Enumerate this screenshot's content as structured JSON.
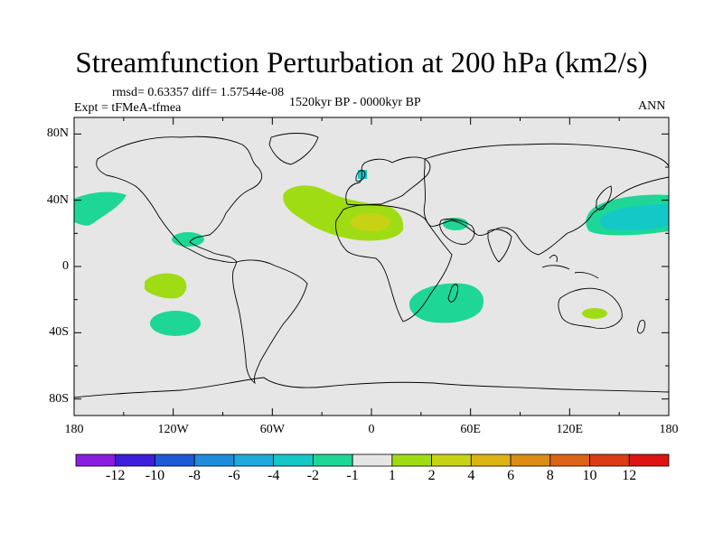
{
  "chart_data": {
    "type": "heatmap",
    "title": "Streamfunction Perturbation at 200 hPa (km2/s)",
    "stats_text": "rmsd= 0.63357 diff= 1.57544e-08",
    "experiment_label": "Expt = tFMeA-tfmea",
    "period_label": "1520kyr BP - 0000kyr BP",
    "season_label": "ANN",
    "x_axis": {
      "range": [
        -180,
        180
      ],
      "ticks": [
        "180",
        "120W",
        "60W",
        "0",
        "60E",
        "120E",
        "180"
      ]
    },
    "y_axis": {
      "range": [
        -90,
        90
      ],
      "ticks": [
        "80N",
        "40N",
        "0",
        "40S",
        "80S"
      ]
    },
    "colorbar": {
      "labels": [
        "-12",
        "-10",
        "-8",
        "-6",
        "-4",
        "-2",
        "-1",
        "1",
        "2",
        "4",
        "6",
        "8",
        "10",
        "12"
      ],
      "colors": [
        "#8a1ee0",
        "#3c1edc",
        "#1e5ad8",
        "#1e8cdc",
        "#1eaadc",
        "#14c8c8",
        "#1ed796",
        "#e6e6e6",
        "#a0dc14",
        "#c8d214",
        "#dcb414",
        "#dc8c14",
        "#dc6414",
        "#dc3c14",
        "#dc1414"
      ]
    },
    "anomalies": [
      {
        "region": "North Pacific east",
        "lon": -175,
        "lat": 36,
        "class": "-2"
      },
      {
        "region": "North Pacific west",
        "lon": 165,
        "lat": 32,
        "class": "-2"
      },
      {
        "region": "North Pacific core",
        "lon": 168,
        "lat": 30,
        "class": "-4"
      },
      {
        "region": "Subtropical Pacific",
        "lon": -121,
        "lat": 17,
        "class": "-2"
      },
      {
        "region": "South Pacific",
        "lon": -130,
        "lat": -17,
        "class": "2"
      },
      {
        "region": "South Pacific lower",
        "lon": -125,
        "lat": -33,
        "class": "-2"
      },
      {
        "region": "North Atlantic / Sahara",
        "lon": -10,
        "lat": 33,
        "class": "2"
      },
      {
        "region": "Sahara core",
        "lon": 0,
        "lat": 28,
        "class": "4"
      },
      {
        "region": "Arabia",
        "lon": 50,
        "lat": 25,
        "class": "-2"
      },
      {
        "region": "Scandinavia",
        "lon": 0,
        "lat": 55,
        "class": "-4"
      },
      {
        "region": "Southern Indian Ocean",
        "lon": 45,
        "lat": -23,
        "class": "-2"
      },
      {
        "region": "Australia",
        "lon": 135,
        "lat": -28,
        "class": "2"
      }
    ]
  }
}
